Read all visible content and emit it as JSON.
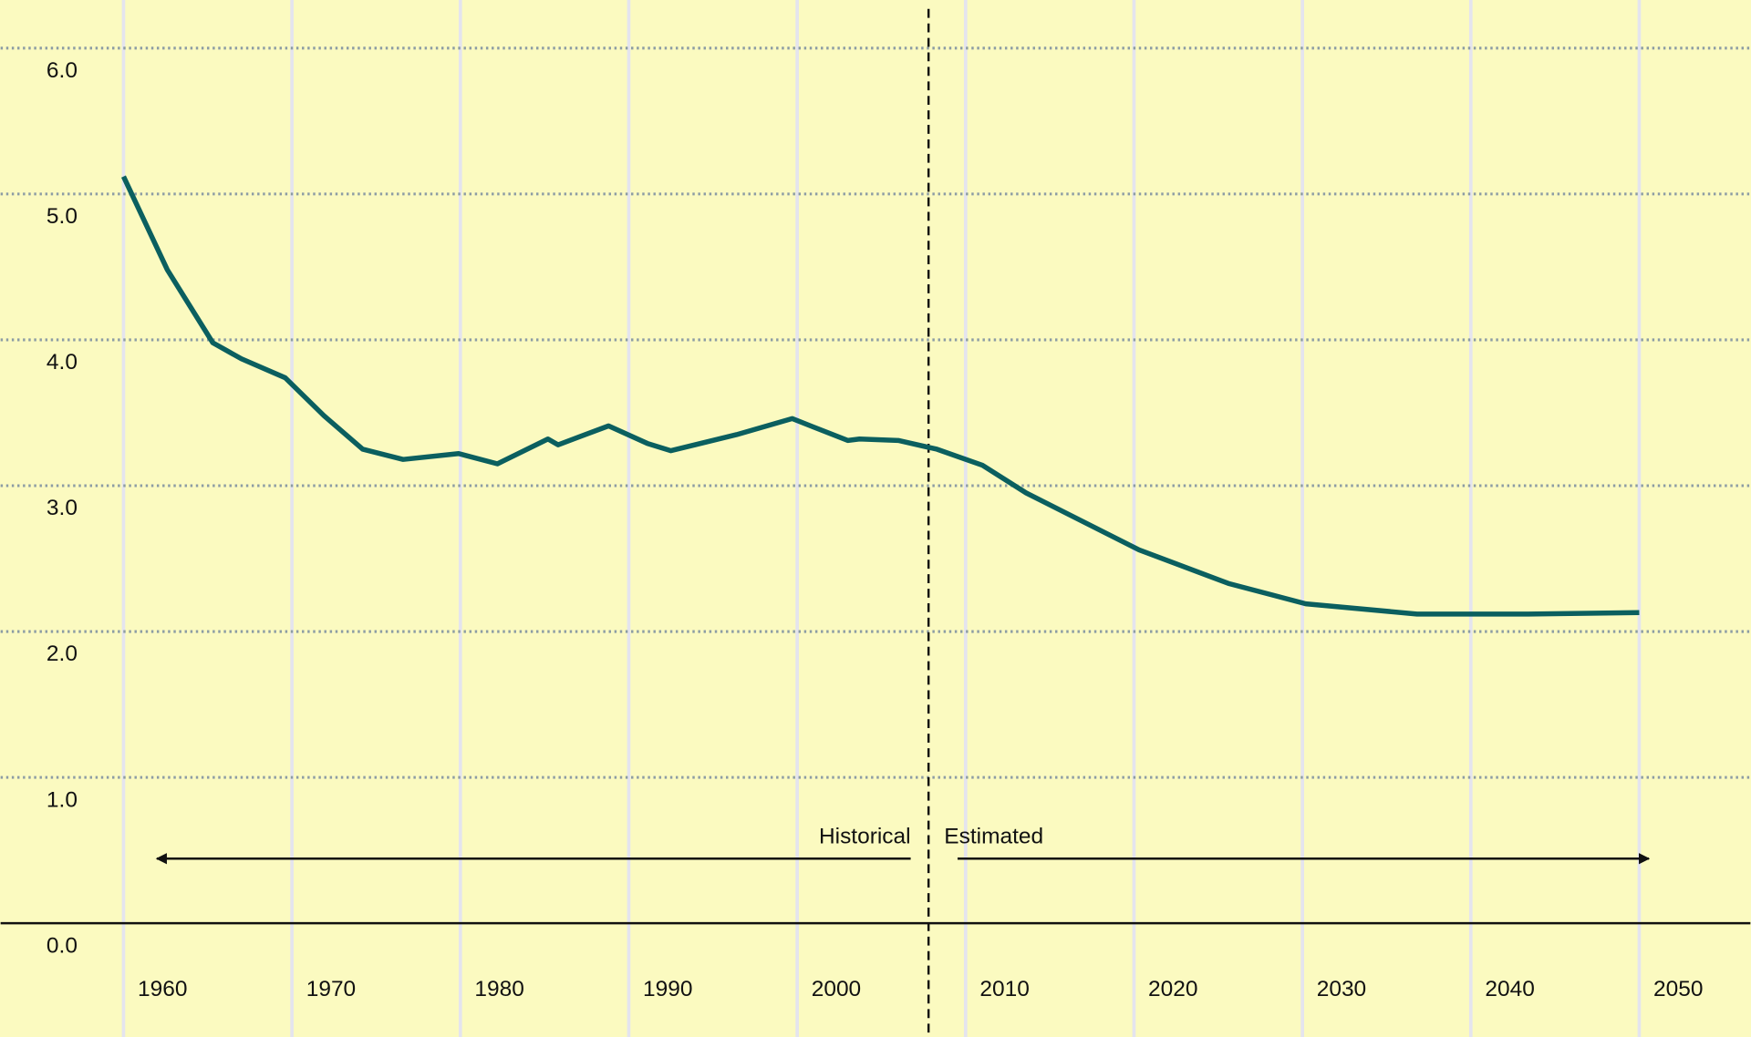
{
  "chart_data": {
    "type": "line",
    "x": [
      1960,
      1962.6,
      1965.3,
      1967,
      1969.6,
      1971.9,
      1974.2,
      1976.6,
      1979.9,
      1982.2,
      1985.2,
      1985.8,
      1988.8,
      1991.1,
      1992.5,
      1996.4,
      1999.7,
      2003,
      2003.7,
      2006,
      2008.3,
      2011,
      2013.6,
      2020.3,
      2025.6,
      2030.2,
      2036.8,
      2043.4,
      2050
    ],
    "series": [
      {
        "color": "#0b5f5f",
        "values": [
          5.12,
          4.48,
          3.98,
          3.87,
          3.74,
          3.48,
          3.25,
          3.18,
          3.22,
          3.15,
          3.32,
          3.28,
          3.41,
          3.29,
          3.24,
          3.35,
          3.46,
          3.31,
          3.32,
          3.31,
          3.25,
          3.14,
          2.95,
          2.56,
          2.33,
          2.19,
          2.12,
          2.12,
          2.13
        ]
      }
    ],
    "xlim": [
      1952.7,
      2056.6
    ],
    "xticks": [
      1960,
      1970,
      1980,
      1990,
      2000,
      2010,
      2020,
      2030,
      2040,
      2050
    ],
    "ylim": [
      -0.78,
      6.33
    ],
    "yticks": [
      {
        "value": 0,
        "label": "0.0"
      },
      {
        "value": 1,
        "label": "1.0"
      },
      {
        "value": 2,
        "label": "2.0"
      },
      {
        "value": 3,
        "label": "3.0"
      },
      {
        "value": 4,
        "label": "4.0"
      },
      {
        "value": 5,
        "label": "5.0"
      },
      {
        "value": 6,
        "label": "6.0"
      }
    ],
    "divider_x": 2007.8,
    "annotations": {
      "left": "Historical",
      "right": "Estimated"
    },
    "grid": true
  }
}
